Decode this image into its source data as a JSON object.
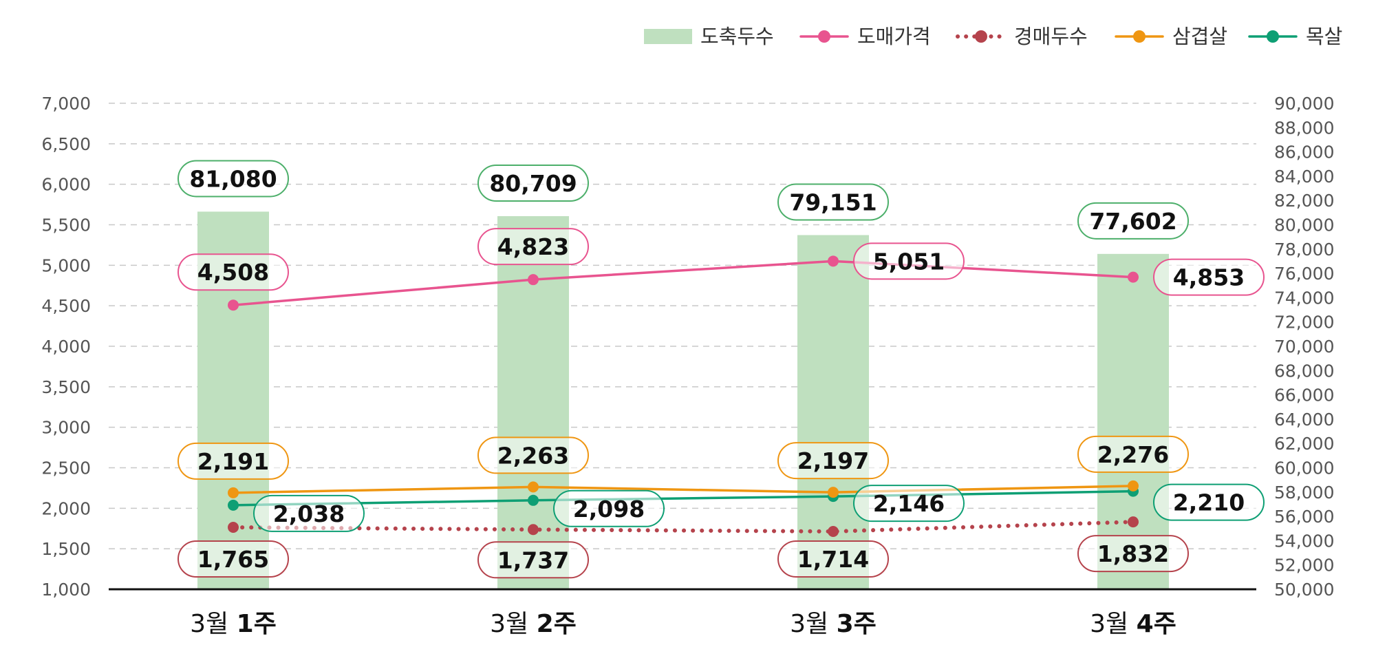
{
  "chart_data": {
    "type": "bar",
    "categories": [
      {
        "month": "3월",
        "week": "1주"
      },
      {
        "month": "3월",
        "week": "2주"
      },
      {
        "month": "3월",
        "week": "3주"
      },
      {
        "month": "3월",
        "week": "4주"
      }
    ],
    "left_axis": {
      "min": 1000,
      "max": 7000,
      "step": 500,
      "ticks": [
        "1,000",
        "1,500",
        "2,000",
        "2,500",
        "3,000",
        "3,500",
        "4,000",
        "4,500",
        "5,000",
        "5,500",
        "6,000",
        "6,500",
        "7,000"
      ]
    },
    "right_axis": {
      "min": 50000,
      "max": 90000,
      "step": 2000,
      "ticks": [
        "50,000",
        "52,000",
        "54,000",
        "56,000",
        "58,000",
        "60,000",
        "62,000",
        "64,000",
        "66,000",
        "68,000",
        "70,000",
        "72,000",
        "74,000",
        "76,000",
        "78,000",
        "80,000",
        "82,000",
        "84,000",
        "86,000",
        "88,000",
        "90,000"
      ]
    },
    "grid": true,
    "legend_position": "top-right",
    "series": [
      {
        "name": "도축두수",
        "type": "bar",
        "axis": "right",
        "color": "#bfe0bf",
        "label_border": "#4caf6a",
        "values": [
          81080,
          80709,
          79151,
          77602
        ],
        "labels": [
          "81,080",
          "80,709",
          "79,151",
          "77,602"
        ]
      },
      {
        "name": "도매가격",
        "type": "line",
        "axis": "left",
        "color": "#e8548f",
        "label_border": "#e8548f",
        "values": [
          4508,
          4823,
          5051,
          4853
        ],
        "labels": [
          "4,508",
          "4,823",
          "5,051",
          "4,853"
        ]
      },
      {
        "name": "경매두수",
        "type": "line",
        "style": "dotted",
        "axis": "left",
        "color": "#b5434c",
        "label_border": "#b5434c",
        "values": [
          1765,
          1737,
          1714,
          1832
        ],
        "labels": [
          "1,765",
          "1,737",
          "1,714",
          "1,832"
        ]
      },
      {
        "name": "삼겹살",
        "type": "line",
        "axis": "left",
        "color": "#ef9612",
        "label_border": "#ef9612",
        "values": [
          2191,
          2263,
          2197,
          2276
        ],
        "labels": [
          "2,191",
          "2,263",
          "2,197",
          "2,276"
        ]
      },
      {
        "name": "목살",
        "type": "line",
        "axis": "left",
        "color": "#0e9f74",
        "label_border": "#0e9f74",
        "values": [
          2038,
          2098,
          2146,
          2210
        ],
        "labels": [
          "2,038",
          "2,098",
          "2,146",
          "2,210"
        ]
      }
    ]
  }
}
